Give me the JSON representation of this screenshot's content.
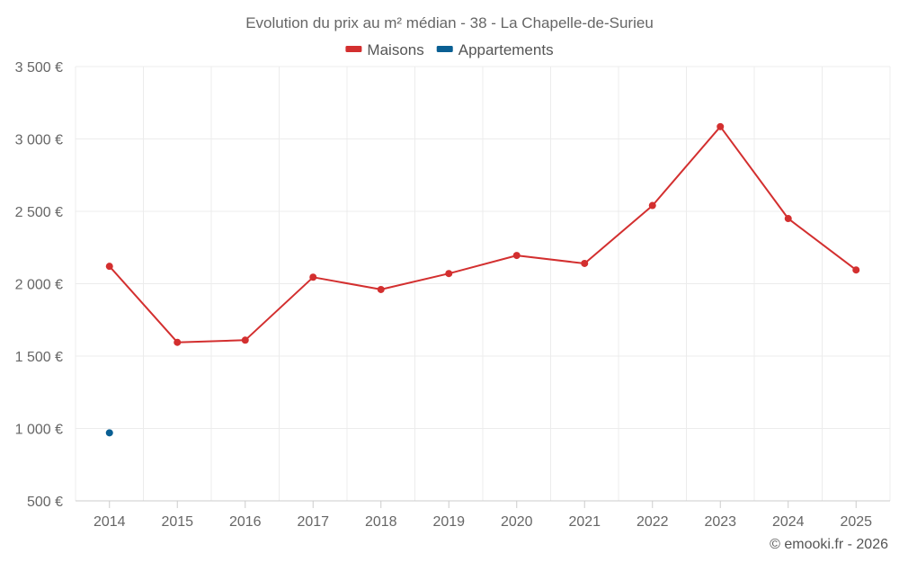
{
  "chart_data": {
    "type": "line",
    "title": "Evolution du prix au m² médian - 38 - La Chapelle-de-Surieu",
    "categories": [
      "2014",
      "2015",
      "2016",
      "2017",
      "2018",
      "2019",
      "2020",
      "2021",
      "2022",
      "2023",
      "2024",
      "2025"
    ],
    "series": [
      {
        "name": "Maisons",
        "color": "#d32f2f",
        "values": [
          2120,
          1595,
          1610,
          2045,
          1960,
          2070,
          2195,
          2140,
          2540,
          3085,
          2450,
          2095
        ]
      },
      {
        "name": "Appartements",
        "color": "#0a5f93",
        "values": [
          970,
          null,
          null,
          null,
          null,
          null,
          null,
          null,
          null,
          null,
          null,
          null
        ]
      }
    ],
    "ylim": [
      500,
      3500
    ],
    "yticks": [
      500,
      1000,
      1500,
      2000,
      2500,
      3000,
      3500
    ],
    "ytick_labels": [
      "500 €",
      "1 000 €",
      "1 500 €",
      "2 000 €",
      "2 500 €",
      "3 000 €",
      "3 500 €"
    ],
    "xlabel": "",
    "ylabel": "",
    "grid": true,
    "legend_position": "top-center"
  },
  "credit": "© emooki.fr - 2026"
}
